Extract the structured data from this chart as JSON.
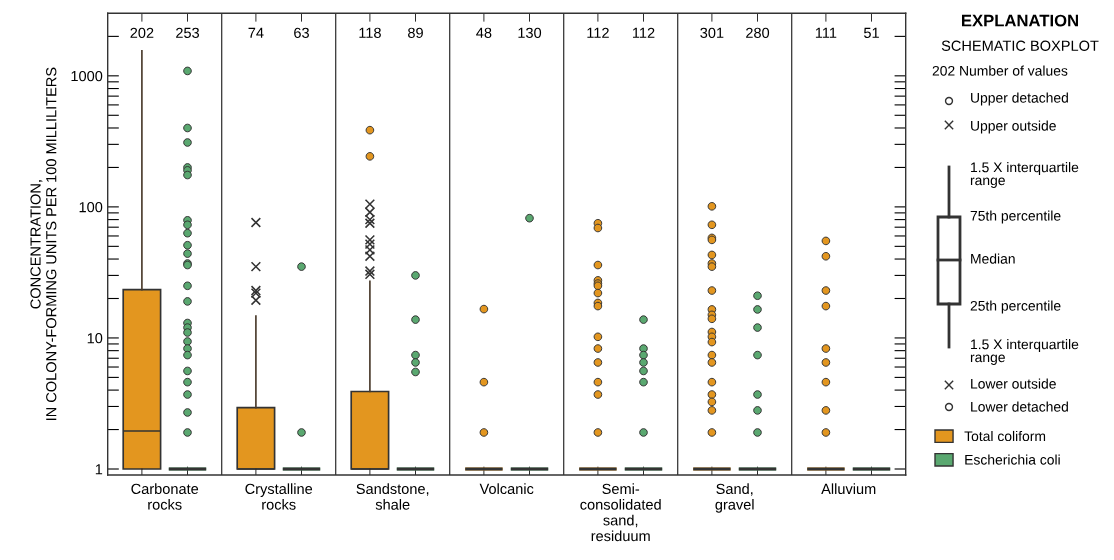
{
  "chart_data": {
    "type": "box",
    "categories": [
      "Carbonate\nrocks",
      "Crystalline\nrocks",
      "Sandstone,\nshale",
      "Volcanic",
      "Semi-\nconsolidated\nsand,\nresiduum",
      "Sand,\ngravel",
      "Alluvium"
    ],
    "ylabel": "CONCENTRATION,\nIN COLONY-FORMING UNITS PER 100 MILLILITERS",
    "log": "y",
    "ylim": [
      0.9,
      3000
    ],
    "yticks": [
      1,
      {
        "value": 2,
        "label": null
      },
      {
        "value": 3,
        "label": null
      },
      {
        "value": 4,
        "label": null
      },
      {
        "value": 5,
        "label": null
      },
      {
        "value": 6,
        "label": null
      },
      {
        "value": 7,
        "label": null
      },
      {
        "value": 8,
        "label": null
      },
      {
        "value": 9,
        "label": null
      },
      10,
      {
        "value": 20,
        "label": null
      },
      {
        "value": 30,
        "label": null
      },
      {
        "value": 40,
        "label": null
      },
      {
        "value": 50,
        "label": null
      },
      {
        "value": 60,
        "label": null
      },
      {
        "value": 70,
        "label": null
      },
      {
        "value": 80,
        "label": null
      },
      {
        "value": 90,
        "label": null
      },
      100,
      {
        "value": 200,
        "label": null
      },
      {
        "value": 300,
        "label": null
      },
      {
        "value": 400,
        "label": null
      },
      {
        "value": 500,
        "label": null
      },
      {
        "value": 600,
        "label": null
      },
      {
        "value": 700,
        "label": null
      },
      {
        "value": 800,
        "label": null
      },
      {
        "value": 900,
        "label": null
      },
      1000,
      {
        "value": 2000,
        "label": null
      }
    ],
    "legend": "right",
    "annotations": [
      "EXPLANATION",
      "SCHEMATIC BOXPLOT",
      "202 Number of values",
      "Upper detached",
      "Upper outside",
      "1.5 X interquartile\nrange",
      "75th percentile",
      "Median",
      "25th percentile",
      "1.5 X interquartile\nrange",
      "Lower outside",
      "Lower detached"
    ],
    "series": [
      {
        "name": "Total coliform",
        "color": "#e3961f",
        "value_labels": [
          "202",
          "74",
          "118",
          "48",
          "112",
          "301",
          "111"
        ],
        "boxes": [
          {
            "low": 1,
            "q1": 1,
            "median": 1.95,
            "q3": 23.4,
            "high": 1550
          },
          {
            "low": 1,
            "q1": 1,
            "median": 1,
            "q3": 2.94,
            "high": 14.7
          },
          {
            "low": 1,
            "q1": 1,
            "median": 1,
            "q3": 3.9,
            "high": 27,
            "outliers": [
              385,
              243
            ]
          },
          {
            "low": 1,
            "q1": 1,
            "median": 1,
            "q3": 1,
            "high": 1,
            "outliers": [
              16.6,
              4.6,
              1.9
            ]
          },
          {
            "low": 1,
            "q1": 1,
            "median": 1,
            "q3": 1,
            "high": 1,
            "outliers": [
              75,
              69,
              36,
              27.5,
              26,
              25,
              22,
              18.5,
              17.5,
              10.2,
              8.3,
              6.5,
              4.6,
              3.7,
              1.9
            ]
          },
          {
            "low": 1,
            "q1": 1,
            "median": 1,
            "q3": 1,
            "high": 1,
            "outliers": [
              101,
              73,
              58,
              56,
              43,
              37,
              35,
              23,
              16.5,
              15,
              14,
              11.1,
              10.2,
              9.3,
              7.4,
              6.5,
              4.6,
              3.7,
              3.25,
              2.8,
              1.9
            ]
          },
          {
            "low": 1,
            "q1": 1,
            "median": 1,
            "q3": 1,
            "high": 1,
            "outliers": [
              55,
              42,
              23,
              17.5,
              8.3,
              6.5,
              4.6,
              2.8,
              1.9
            ]
          }
        ]
      },
      {
        "name": "Escherichia coli",
        "color": "#5aa870",
        "value_labels": [
          "253",
          "63",
          "89",
          "130",
          "112",
          "280",
          "51"
        ],
        "boxes": [
          {
            "low": 1,
            "q1": 1,
            "median": 1,
            "q3": 1,
            "high": 1,
            "outliers": [
              1090,
              400,
              310,
              200,
              190,
              175,
              79,
              73,
              63,
              51,
              44,
              37,
              36,
              25,
              19,
              13,
              12,
              11,
              9.4,
              8.3,
              7.4,
              5.6,
              4.6,
              3.7,
              2.7,
              1.9
            ]
          },
          {
            "low": 1,
            "q1": 1,
            "median": 1,
            "q3": 1,
            "high": 1,
            "outliers": [
              35,
              1.9
            ]
          },
          {
            "low": 1,
            "q1": 1,
            "median": 1,
            "q3": 1,
            "high": 1,
            "outliers": [
              30,
              13.8,
              7.4,
              6.5,
              5.5
            ]
          },
          {
            "low": 1,
            "q1": 1,
            "median": 1,
            "q3": 1,
            "high": 1,
            "outliers": [
              82
            ]
          },
          {
            "low": 1,
            "q1": 1,
            "median": 1,
            "q3": 1,
            "high": 1,
            "outliers": [
              13.8,
              8.3,
              7.4,
              6.5,
              5.6,
              4.6,
              1.9
            ]
          },
          {
            "low": 1,
            "q1": 1,
            "median": 1,
            "q3": 1,
            "high": 1,
            "outliers": [
              21,
              16.5,
              12,
              7.4,
              3.7,
              2.8,
              1.9
            ]
          },
          {
            "low": 1,
            "q1": 1,
            "median": 1,
            "q3": 1,
            "high": 1
          }
        ]
      },
      {
        "type": "scatter",
        "marker": "cross",
        "color": "#333333",
        "x": [
          "Crystalline\nrocks",
          "Crystalline\nrocks",
          "Crystalline\nrocks",
          "Crystalline\nrocks",
          "Crystalline\nrocks",
          "Sandstone,\nshale",
          "Sandstone,\nshale",
          "Sandstone,\nshale",
          "Sandstone,\nshale",
          "Sandstone,\nshale",
          "Sandstone,\nshale",
          "Sandstone,\nshale",
          "Sandstone,\nshale",
          "Sandstone,\nshale",
          "Sandstone,\nshale"
        ],
        "values": [
          76,
          35,
          23,
          22,
          19.4,
          105,
          91,
          80,
          75,
          56,
          52,
          47,
          42,
          32.4,
          30.6
        ]
      }
    ]
  }
}
